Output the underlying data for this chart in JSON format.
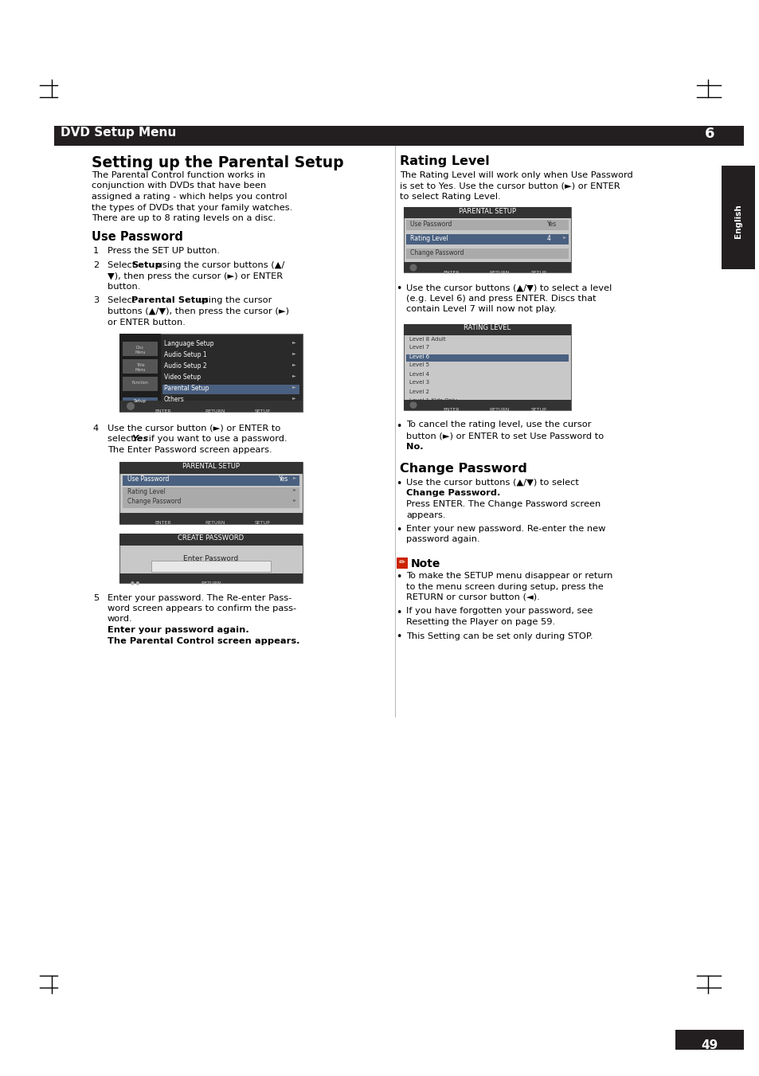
{
  "bg_color": "#ffffff",
  "header_bar_color": "#231f20",
  "header_text": "DVD Setup Menu",
  "header_text_color": "#ffffff",
  "header_number": "6",
  "header_number_bg": "#231f20",
  "english_tab_color": "#231f20",
  "english_tab_text": "English",
  "page_number": "49",
  "page_number_bg": "#231f20",
  "left_col_title": "Setting up the Parental Setup",
  "left_col_intro1": "The Parental Control function works in",
  "left_col_intro2": "conjunction with DVDs that have been",
  "left_col_intro3": "assigned a rating - which helps you control",
  "left_col_intro4": "the types of DVDs that your family watches.",
  "left_col_intro5": "There are up to 8 rating levels on a disc.",
  "use_password_title": "Use Password",
  "right_col_title": "Rating Level",
  "right_col_intro1": "The Rating Level will work only when Use Password",
  "right_col_intro2": "is set to Yes. Use the cursor button (►) or ENTER",
  "right_col_intro3": "to select Rating Level.",
  "rating_bullet1_line1": "Use the cursor buttons (▲/▼) to select a level",
  "rating_bullet1_line2": "(e.g. Level 6) and press ENTER. Discs that",
  "rating_bullet1_line3": "contain Level 7 will now not play.",
  "rating_bullet2_line1": "To cancel the rating level, use the cursor",
  "rating_bullet2_line2": "button (►) or ENTER to set Use Password to",
  "rating_bullet2_line3": "No.",
  "change_password_title": "Change Password",
  "change_bullet1_line1": "Use the cursor buttons (▲/▼) to select",
  "change_bullet1_line2": "Change Password.",
  "change_bullet1_line3": "Press ENTER. The Change Password screen",
  "change_bullet1_line4": "appears.",
  "change_bullet2_line1": "Enter your new password. Re-enter the new",
  "change_bullet2_line2": "password again.",
  "note_title": "Note",
  "note_bullet1_line1": "To make the SETUP menu disappear or return",
  "note_bullet1_line2": "to the menu screen during setup, press the",
  "note_bullet1_line3": "RETURN or cursor button (◄).",
  "note_bullet2_line1": "If you have forgotten your password, see",
  "note_bullet2_line2": "Resetting the Player on page 59.",
  "note_bullet3": "This Setting can be set only during STOP.",
  "step1": "Press the SET UP button.",
  "step2_line1": "Select Setup using the cursor buttons (▲/",
  "step2_line2": "▼), then press the cursor (►) or ENTER",
  "step2_line3": "button.",
  "step3_line1": "Select Parental Setup using the cursor",
  "step3_line2": "buttons (▲/▼), then press the cursor (►)",
  "step3_line3": "or ENTER button.",
  "step4_line1": "Use the cursor button (►) or ENTER to",
  "step4_line2": "select Yes if you want to use a password.",
  "step4_line3": "The Enter Password screen appears.",
  "step5_line1": "Enter your password. The Re-enter Pass-",
  "step5_line2": "word screen appears to confirm the pass-",
  "step5_line3": "word.",
  "step5_line4": "Enter your password again.",
  "step5_line5": "The Parental Control screen appears."
}
